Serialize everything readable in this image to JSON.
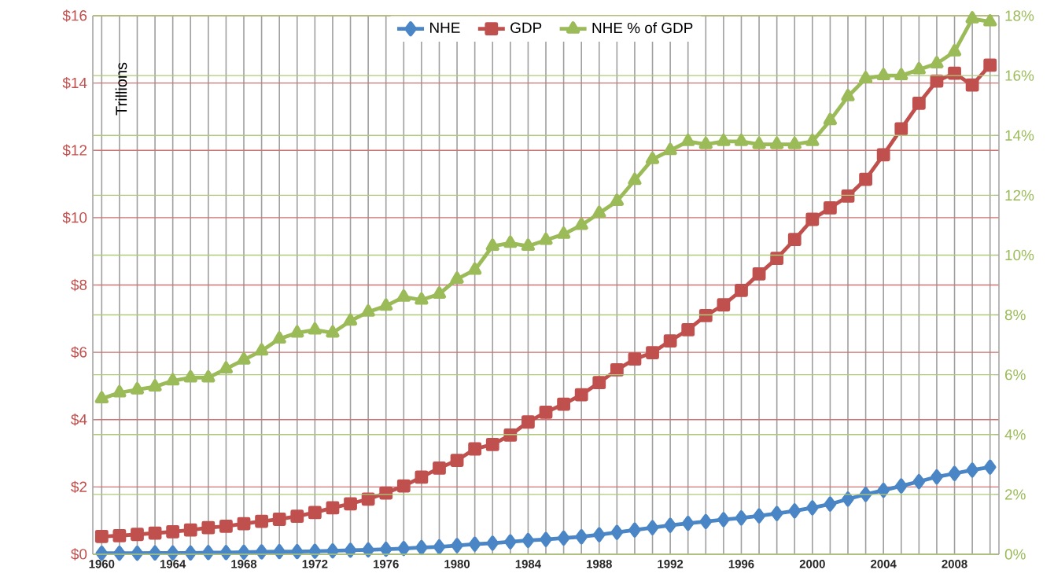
{
  "chart_data": {
    "type": "line",
    "ylabel": "Trillions",
    "grid": true,
    "legend": "top",
    "x": [
      1960,
      1961,
      1962,
      1963,
      1964,
      1965,
      1966,
      1967,
      1968,
      1969,
      1970,
      1971,
      1972,
      1973,
      1974,
      1975,
      1976,
      1977,
      1978,
      1979,
      1980,
      1981,
      1982,
      1983,
      1984,
      1985,
      1986,
      1987,
      1988,
      1989,
      1990,
      1991,
      1992,
      1993,
      1994,
      1995,
      1996,
      1997,
      1998,
      1999,
      2000,
      2001,
      2002,
      2003,
      2004,
      2005,
      2006,
      2007,
      2008,
      2009,
      2010
    ],
    "xlim": [
      1959.5,
      2010.5
    ],
    "xticks": [
      1960,
      {
        "value": 1961,
        "label": null
      },
      {
        "value": 1962,
        "label": null
      },
      {
        "value": 1963,
        "label": null
      },
      1964,
      {
        "value": 1965,
        "label": null
      },
      {
        "value": 1966,
        "label": null
      },
      {
        "value": 1967,
        "label": null
      },
      1968,
      {
        "value": 1969,
        "label": null
      },
      {
        "value": 1970,
        "label": null
      },
      {
        "value": 1971,
        "label": null
      },
      1972,
      {
        "value": 1973,
        "label": null
      },
      {
        "value": 1974,
        "label": null
      },
      {
        "value": 1975,
        "label": null
      },
      1976,
      {
        "value": 1977,
        "label": null
      },
      {
        "value": 1978,
        "label": null
      },
      {
        "value": 1979,
        "label": null
      },
      1980,
      {
        "value": 1981,
        "label": null
      },
      {
        "value": 1982,
        "label": null
      },
      {
        "value": 1983,
        "label": null
      },
      1984,
      {
        "value": 1985,
        "label": null
      },
      {
        "value": 1986,
        "label": null
      },
      {
        "value": 1987,
        "label": null
      },
      1988,
      {
        "value": 1989,
        "label": null
      },
      {
        "value": 1990,
        "label": null
      },
      {
        "value": 1991,
        "label": null
      },
      1992,
      {
        "value": 1993,
        "label": null
      },
      {
        "value": 1994,
        "label": null
      },
      {
        "value": 1995,
        "label": null
      },
      1996,
      {
        "value": 1997,
        "label": null
      },
      {
        "value": 1998,
        "label": null
      },
      {
        "value": 1999,
        "label": null
      },
      2000,
      {
        "value": 2001,
        "label": null
      },
      {
        "value": 2002,
        "label": null
      },
      {
        "value": 2003,
        "label": null
      },
      2004,
      {
        "value": 2005,
        "label": null
      },
      {
        "value": 2006,
        "label": null
      },
      {
        "value": 2007,
        "label": null
      },
      2008,
      {
        "value": 2009,
        "label": null
      },
      {
        "value": 2010,
        "label": null
      }
    ],
    "ylim": [
      0,
      16
    ],
    "yticks": [
      {
        "value": 0,
        "label": "$0"
      },
      {
        "value": 2,
        "label": "$2"
      },
      {
        "value": 4,
        "label": "$4"
      },
      {
        "value": 6,
        "label": "$6"
      },
      {
        "value": 8,
        "label": "$8"
      },
      {
        "value": 10,
        "label": "$10"
      },
      {
        "value": 12,
        "label": "$12"
      },
      {
        "value": 14,
        "label": "$14"
      },
      {
        "value": 16,
        "label": "$16"
      }
    ],
    "y2lim": [
      0,
      18
    ],
    "y2ticks": [
      {
        "value": 0,
        "label": "0%"
      },
      {
        "value": 2,
        "label": "2%"
      },
      {
        "value": 4,
        "label": "4%"
      },
      {
        "value": 6,
        "label": "6%"
      },
      {
        "value": 8,
        "label": "8%"
      },
      {
        "value": 10,
        "label": "10%"
      },
      {
        "value": 12,
        "label": "12%"
      },
      {
        "value": 14,
        "label": "14%"
      },
      {
        "value": 16,
        "label": "16%"
      },
      {
        "value": 18,
        "label": "18%"
      }
    ],
    "series": [
      {
        "name": "NHE",
        "color": "#4a86c6",
        "marker": "diamond",
        "values": [
          0.03,
          0.03,
          0.03,
          0.04,
          0.04,
          0.04,
          0.05,
          0.05,
          0.06,
          0.07,
          0.08,
          0.08,
          0.09,
          0.1,
          0.12,
          0.13,
          0.15,
          0.17,
          0.2,
          0.22,
          0.26,
          0.3,
          0.33,
          0.37,
          0.41,
          0.44,
          0.48,
          0.52,
          0.58,
          0.65,
          0.72,
          0.79,
          0.86,
          0.92,
          0.97,
          1.03,
          1.08,
          1.14,
          1.21,
          1.29,
          1.38,
          1.49,
          1.64,
          1.78,
          1.9,
          2.03,
          2.16,
          2.3,
          2.4,
          2.5,
          2.59
        ]
      },
      {
        "name": "GDP",
        "color": "#c0504d",
        "marker": "square",
        "values": [
          0.53,
          0.55,
          0.59,
          0.63,
          0.67,
          0.72,
          0.79,
          0.83,
          0.91,
          0.98,
          1.04,
          1.13,
          1.24,
          1.38,
          1.5,
          1.64,
          1.82,
          2.03,
          2.29,
          2.56,
          2.79,
          3.13,
          3.26,
          3.54,
          3.93,
          4.22,
          4.46,
          4.74,
          5.1,
          5.48,
          5.8,
          5.99,
          6.34,
          6.67,
          7.09,
          7.41,
          7.84,
          8.33,
          8.79,
          9.35,
          9.95,
          10.29,
          10.64,
          11.14,
          11.87,
          12.64,
          13.4,
          14.06,
          14.29,
          13.94,
          14.53
        ]
      },
      {
        "name": "NHE % of GDP",
        "color": "#9bbb59",
        "marker": "triangle",
        "axis": "y2",
        "values": [
          5.2,
          5.4,
          5.5,
          5.6,
          5.8,
          5.9,
          5.9,
          6.2,
          6.5,
          6.8,
          7.2,
          7.4,
          7.5,
          7.4,
          7.8,
          8.1,
          8.3,
          8.6,
          8.5,
          8.7,
          9.2,
          9.5,
          10.3,
          10.4,
          10.3,
          10.5,
          10.7,
          11.0,
          11.4,
          11.8,
          12.5,
          13.2,
          13.5,
          13.8,
          13.7,
          13.8,
          13.8,
          13.7,
          13.7,
          13.7,
          13.8,
          14.5,
          15.3,
          15.9,
          16.0,
          16.0,
          16.2,
          16.4,
          16.8,
          17.9,
          17.8
        ]
      }
    ]
  }
}
